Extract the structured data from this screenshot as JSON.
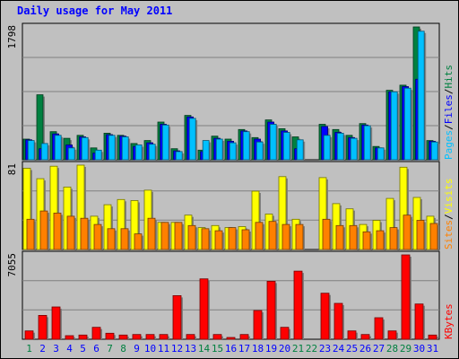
{
  "chart_data": {
    "type": "bar",
    "title": "Daily usage for May 2011",
    "categories": [
      "1",
      "2",
      "3",
      "4",
      "5",
      "6",
      "7",
      "8",
      "9",
      "10",
      "11",
      "12",
      "13",
      "14",
      "15",
      "16",
      "17",
      "18",
      "19",
      "20",
      "21",
      "22",
      "23",
      "24",
      "25",
      "26",
      "27",
      "28",
      "29",
      "30",
      "31"
    ],
    "weekend_days": [
      "1",
      "7",
      "8",
      "14",
      "15",
      "21",
      "22",
      "28",
      "29"
    ],
    "colors": {
      "hits": "#008040",
      "files": "#0000ff",
      "pages": "#00c0ff",
      "visits": "#ffff00",
      "sites": "#ff8000",
      "kbytes": "#ff0000",
      "title": "#0000ff",
      "weekday_label": "#0000ff",
      "weekend_label": "#008040"
    },
    "panels": [
      {
        "id": "hits-files-pages",
        "ymax_label": "1798",
        "ylim": [
          0,
          1798
        ],
        "legend": [
          {
            "label": "Pages",
            "color": "#00c0ff"
          },
          {
            "label": "/",
            "color": "#000000"
          },
          {
            "label": "Files",
            "color": "#0000ff"
          },
          {
            "label": "/",
            "color": "#000000"
          },
          {
            "label": "Hits",
            "color": "#008040"
          }
        ],
        "series": [
          {
            "name": "Hits",
            "values": [
              280,
              880,
              380,
              290,
              330,
              160,
              360,
              330,
              220,
              260,
              510,
              150,
              600,
              130,
              320,
              280,
              410,
              300,
              540,
              420,
              310,
              0,
              480,
              410,
              330,
              490,
              180,
              940,
              1010,
              1798,
              260
            ]
          },
          {
            "name": "Files",
            "values": [
              270,
              150,
              350,
              200,
              310,
              90,
              340,
              320,
              180,
              230,
              480,
              120,
              580,
              110,
              290,
              250,
              390,
              280,
              510,
              390,
              150,
              0,
              450,
              370,
              300,
              470,
              160,
              920,
              990,
              1090,
              250
            ]
          },
          {
            "name": "Pages",
            "values": [
              260,
              220,
              330,
              160,
              300,
              130,
              330,
              310,
              200,
              210,
              470,
              110,
              560,
              260,
              280,
              230,
              380,
              240,
              480,
              370,
              270,
              0,
              330,
              360,
              290,
              460,
              160,
              920,
              970,
              1740,
              240
            ]
          }
        ]
      },
      {
        "id": "sites-visits",
        "ymax_label": "81",
        "ylim": [
          0,
          81
        ],
        "legend": [
          {
            "label": "Sites",
            "color": "#ff8000"
          },
          {
            "label": "/",
            "color": "#000000"
          },
          {
            "label": "Visits",
            "color": "#ffff00"
          }
        ],
        "series": [
          {
            "name": "Visits",
            "values": [
              78,
              68,
              80,
              60,
              81,
              32,
              43,
              48,
              47,
              57,
              26,
              26,
              33,
              21,
              23,
              21,
              22,
              56,
              34,
              70,
              29,
              0,
              69,
              44,
              39,
              24,
              28,
              49,
              79,
              50,
              32
            ]
          },
          {
            "name": "Sites",
            "values": [
              29,
              37,
              35,
              32,
              30,
              24,
              20,
              20,
              15,
              30,
              26,
              26,
              23,
              20,
              18,
              21,
              19,
              26,
              27,
              24,
              24,
              0,
              29,
              23,
              23,
              17,
              18,
              21,
              33,
              28,
              25
            ]
          }
        ]
      },
      {
        "id": "kbytes",
        "ymax_label": "7055",
        "ylim": [
          0,
          7055
        ],
        "legend": [
          {
            "label": "KBytes",
            "color": "#ff0000"
          }
        ],
        "series": [
          {
            "name": "KBytes",
            "values": [
              700,
              2000,
              2700,
              300,
              350,
              1000,
              500,
              350,
              400,
              400,
              400,
              3650,
              400,
              5050,
              400,
              150,
              400,
              2400,
              4850,
              1000,
              5700,
              0,
              3850,
              3000,
              700,
              400,
              1800,
              700,
              7055,
              2950,
              350
            ]
          }
        ]
      }
    ]
  }
}
